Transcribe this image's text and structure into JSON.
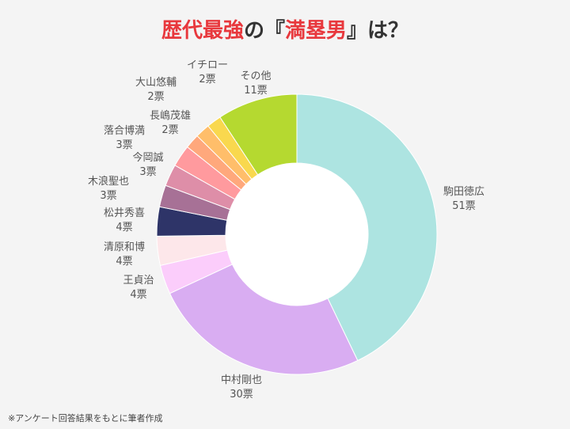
{
  "title": {
    "part1": "歴代最強",
    "part2": "の『",
    "part3": "満塁男",
    "part4": "』は？"
  },
  "source_note": "※アンケート回答結果をもとに筆者作成",
  "chart_data": {
    "type": "pie",
    "donut": true,
    "title": "歴代最強の『満塁男』は？",
    "unit": "票",
    "slices": [
      {
        "name": "駒田徳広",
        "value": 51,
        "label": "51票",
        "color": "#ade4e1"
      },
      {
        "name": "中村剛也",
        "value": 30,
        "label": "30票",
        "color": "#d9adf2"
      },
      {
        "name": "王貞治",
        "value": 4,
        "label": "4票",
        "color": "#fbcdfb"
      },
      {
        "name": "清原和博",
        "value": 4,
        "label": "4票",
        "color": "#fde7ea"
      },
      {
        "name": "松井秀喜",
        "value": 4,
        "label": "4票",
        "color": "#2e3468"
      },
      {
        "name": "木浪聖也",
        "value": 3,
        "label": "3票",
        "color": "#a77196"
      },
      {
        "name": "今岡誠",
        "value": 3,
        "label": "3票",
        "color": "#de8ea8"
      },
      {
        "name": "落合博満",
        "value": 3,
        "label": "3票",
        "color": "#ff9a9e"
      },
      {
        "name": "長嶋茂雄",
        "value": 2,
        "label": "2票",
        "color": "#ffa87c"
      },
      {
        "name": "大山悠輔",
        "value": 2,
        "label": "2票",
        "color": "#ffbe6a"
      },
      {
        "name": "イチロー",
        "value": 2,
        "label": "2票",
        "color": "#f9d84e"
      },
      {
        "name": "その他",
        "value": 11,
        "label": "11票",
        "color": "#b5d930"
      }
    ]
  }
}
